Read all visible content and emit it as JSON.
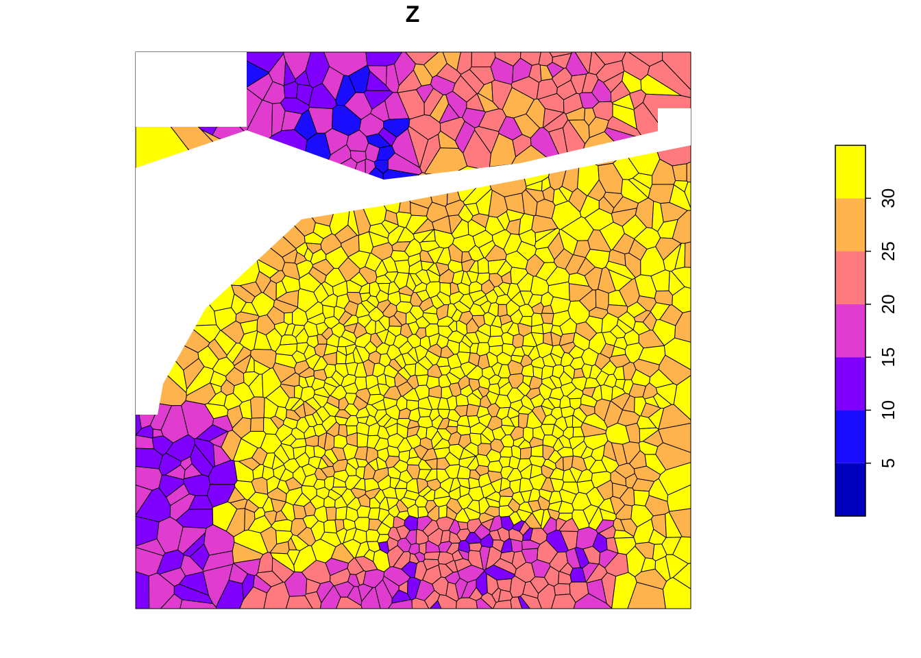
{
  "chart_data": {
    "type": "heatmap",
    "title": "Z",
    "legend": {
      "placement": "right",
      "breaks": [
        0,
        5,
        10,
        15,
        20,
        25,
        30,
        35
      ],
      "colors": [
        "#0000BF",
        "#1A0DFF",
        "#8000FF",
        "#E03DD0",
        "#FF7A7F",
        "#FFB34D",
        "#FFFF00"
      ],
      "tick_labels": [
        "5",
        "10",
        "15",
        "20",
        "25",
        "30"
      ],
      "tick_values": [
        5,
        10,
        15,
        20,
        25,
        30
      ]
    },
    "regions": [
      {
        "zone": "upper-left band",
        "value_range": [
          0,
          20
        ],
        "dominant_class": "10-15"
      },
      {
        "zone": "upper-right band",
        "value_range": [
          10,
          35
        ],
        "dominant_class": "20-25"
      },
      {
        "zone": "central body",
        "value_range": [
          25,
          35
        ],
        "dominant_class": "30-35"
      },
      {
        "zone": "lower-left corner",
        "value_range": [
          10,
          20
        ],
        "dominant_class": "15-20"
      },
      {
        "zone": "lower edge",
        "value_range": [
          5,
          25
        ],
        "dominant_class": "20-25"
      }
    ]
  }
}
